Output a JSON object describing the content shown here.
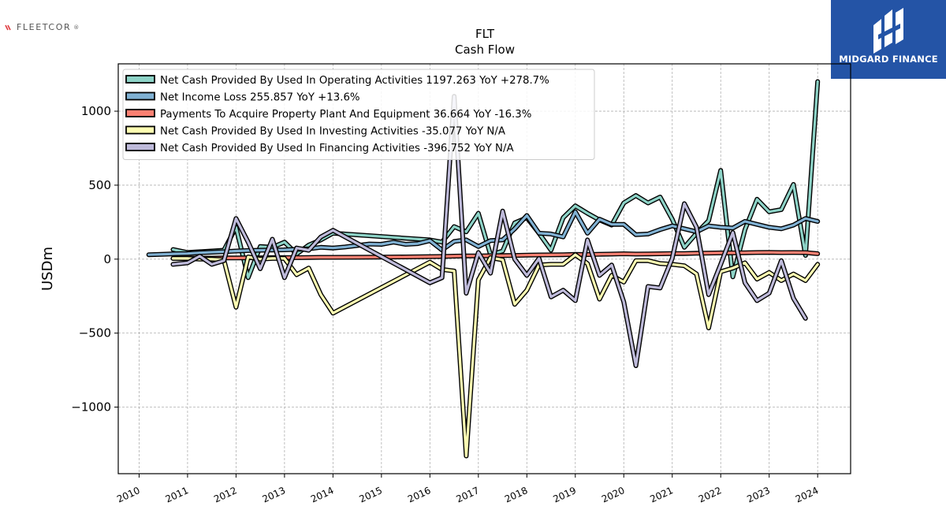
{
  "branding": {
    "left_logo_text": "FLEETCOR",
    "left_logo_mark": "®",
    "right_logo_text": "MIDGARD FINANCE",
    "right_logo_icon": "midgard-mark-icon",
    "right_logo_bg": "#2454a6"
  },
  "chart_data": {
    "type": "line",
    "title": "FLT",
    "subtitle": "Cash Flow",
    "xlabel": "",
    "ylabel": "USDm",
    "ylim": [
      -1450,
      1320
    ],
    "xlim": [
      2009.57,
      2024.68
    ],
    "yticks": [
      1000,
      500,
      0,
      -500,
      -1000
    ],
    "ytick_labels": [
      "1000",
      "500",
      "0",
      "−500",
      "−1000"
    ],
    "xticks": [
      2010,
      2011,
      2012,
      2013,
      2014,
      2015,
      2016,
      2017,
      2018,
      2019,
      2020,
      2021,
      2022,
      2023,
      2024
    ],
    "xtick_labels": [
      "2010",
      "2011",
      "2012",
      "2013",
      "2014",
      "2015",
      "2016",
      "2017",
      "2018",
      "2019",
      "2020",
      "2021",
      "2022",
      "2023",
      "2024"
    ],
    "grid": true,
    "legend_position": "top-left",
    "series": [
      {
        "name": "Net Cash Provided By Used In Operating Activities",
        "legend_label": "Net Cash Provided By Used In Operating Activities  1197.263 YoY +278.7%",
        "color": "#8dd3c7",
        "points": [
          [
            2010.7,
            65
          ],
          [
            2011.0,
            45
          ],
          [
            2011.25,
            50
          ],
          [
            2011.5,
            55
          ],
          [
            2011.75,
            60
          ],
          [
            2012.0,
            215
          ],
          [
            2012.25,
            -125
          ],
          [
            2012.5,
            85
          ],
          [
            2012.75,
            80
          ],
          [
            2013.0,
            115
          ],
          [
            2013.25,
            35
          ],
          [
            2013.5,
            95
          ],
          [
            2013.75,
            130
          ],
          [
            2014.0,
            175
          ],
          [
            2016.0,
            130
          ],
          [
            2016.25,
            115
          ],
          [
            2016.5,
            220
          ],
          [
            2016.75,
            185
          ],
          [
            2017.0,
            310
          ],
          [
            2017.25,
            30
          ],
          [
            2017.5,
            55
          ],
          [
            2017.75,
            245
          ],
          [
            2018.0,
            280
          ],
          [
            2018.25,
            175
          ],
          [
            2018.5,
            60
          ],
          [
            2018.75,
            280
          ],
          [
            2019.0,
            360
          ],
          [
            2019.25,
            310
          ],
          [
            2019.5,
            265
          ],
          [
            2019.75,
            230
          ],
          [
            2020.0,
            380
          ],
          [
            2020.25,
            430
          ],
          [
            2020.5,
            380
          ],
          [
            2020.75,
            420
          ],
          [
            2021.0,
            270
          ],
          [
            2021.25,
            80
          ],
          [
            2021.5,
            175
          ],
          [
            2021.75,
            260
          ],
          [
            2022.0,
            600
          ],
          [
            2022.25,
            -120
          ],
          [
            2022.5,
            200
          ],
          [
            2022.75,
            405
          ],
          [
            2023.0,
            320
          ],
          [
            2023.25,
            335
          ],
          [
            2023.5,
            505
          ],
          [
            2023.75,
            25
          ],
          [
            2024.0,
            1200
          ]
        ]
      },
      {
        "name": "Net Income Loss",
        "legend_label": "Net Income Loss  255.857 YoY +13.6%",
        "color": "#80b1d3",
        "points": [
          [
            2010.2,
            30
          ],
          [
            2010.5,
            33
          ],
          [
            2010.75,
            36
          ],
          [
            2011.0,
            38
          ],
          [
            2011.25,
            43
          ],
          [
            2011.5,
            47
          ],
          [
            2011.75,
            50
          ],
          [
            2012.0,
            55
          ],
          [
            2012.25,
            58
          ],
          [
            2012.5,
            60
          ],
          [
            2012.75,
            62
          ],
          [
            2013.0,
            63
          ],
          [
            2013.25,
            66
          ],
          [
            2013.5,
            70
          ],
          [
            2013.75,
            80
          ],
          [
            2014.0,
            75
          ],
          [
            2014.25,
            82
          ],
          [
            2014.5,
            92
          ],
          [
            2014.75,
            102
          ],
          [
            2015.0,
            100
          ],
          [
            2015.25,
            115
          ],
          [
            2015.5,
            100
          ],
          [
            2015.75,
            105
          ],
          [
            2016.0,
            125
          ],
          [
            2016.25,
            62
          ],
          [
            2016.5,
            120
          ],
          [
            2016.75,
            130
          ],
          [
            2017.0,
            85
          ],
          [
            2017.25,
            125
          ],
          [
            2017.5,
            130
          ],
          [
            2017.75,
            205
          ],
          [
            2018.0,
            295
          ],
          [
            2018.25,
            175
          ],
          [
            2018.5,
            170
          ],
          [
            2018.75,
            150
          ],
          [
            2019.0,
            320
          ],
          [
            2019.25,
            175
          ],
          [
            2019.5,
            270
          ],
          [
            2019.75,
            235
          ],
          [
            2020.0,
            235
          ],
          [
            2020.25,
            165
          ],
          [
            2020.5,
            170
          ],
          [
            2020.75,
            200
          ],
          [
            2021.0,
            225
          ],
          [
            2021.25,
            205
          ],
          [
            2021.5,
            185
          ],
          [
            2021.75,
            225
          ],
          [
            2022.0,
            215
          ],
          [
            2022.25,
            210
          ],
          [
            2022.5,
            255
          ],
          [
            2022.75,
            235
          ],
          [
            2023.0,
            215
          ],
          [
            2023.25,
            205
          ],
          [
            2023.5,
            230
          ],
          [
            2023.75,
            275
          ],
          [
            2024.0,
            255
          ]
        ]
      },
      {
        "name": "Payments To Acquire Property Plant And Equipment",
        "legend_label": "Payments To Acquire Property Plant And Equipment  36.664 YoY -16.3%",
        "color": "#fb8072",
        "points": [
          [
            2010.7,
            5
          ],
          [
            2011.0,
            6
          ],
          [
            2011.25,
            7
          ],
          [
            2011.5,
            7
          ],
          [
            2011.75,
            8
          ],
          [
            2012.0,
            8
          ],
          [
            2012.25,
            9
          ],
          [
            2012.5,
            9
          ],
          [
            2012.75,
            10
          ],
          [
            2013.0,
            10
          ],
          [
            2013.25,
            10
          ],
          [
            2013.5,
            11
          ],
          [
            2013.75,
            12
          ],
          [
            2014.0,
            12
          ],
          [
            2014.5,
            13
          ],
          [
            2015.0,
            14
          ],
          [
            2015.5,
            15
          ],
          [
            2016.0,
            17
          ],
          [
            2016.25,
            18
          ],
          [
            2016.5,
            20
          ],
          [
            2016.75,
            22
          ],
          [
            2017.0,
            22
          ],
          [
            2017.25,
            23
          ],
          [
            2017.5,
            24
          ],
          [
            2017.75,
            25
          ],
          [
            2018.0,
            27
          ],
          [
            2018.25,
            28
          ],
          [
            2018.5,
            29
          ],
          [
            2018.75,
            30
          ],
          [
            2019.0,
            32
          ],
          [
            2019.25,
            31
          ],
          [
            2019.5,
            33
          ],
          [
            2019.75,
            34
          ],
          [
            2020.0,
            36
          ],
          [
            2020.25,
            34
          ],
          [
            2020.5,
            35
          ],
          [
            2020.75,
            36
          ],
          [
            2021.0,
            38
          ],
          [
            2021.25,
            38
          ],
          [
            2021.5,
            40
          ],
          [
            2021.75,
            41
          ],
          [
            2022.0,
            42
          ],
          [
            2022.25,
            42
          ],
          [
            2022.5,
            43
          ],
          [
            2022.75,
            45
          ],
          [
            2023.0,
            46
          ],
          [
            2023.25,
            44
          ],
          [
            2023.5,
            45
          ],
          [
            2023.75,
            44
          ],
          [
            2024.0,
            37
          ]
        ]
      },
      {
        "name": "Net Cash Provided By Used In Investing Activities",
        "legend_label": "Net Cash Provided By Used In Investing Activities  -35.077 YoY N/A",
        "color": "#ffffb3",
        "points": [
          [
            2010.7,
            5
          ],
          [
            2011.0,
            5
          ],
          [
            2011.25,
            0
          ],
          [
            2011.5,
            0
          ],
          [
            2011.75,
            -5
          ],
          [
            2012.0,
            -325
          ],
          [
            2012.25,
            15
          ],
          [
            2012.5,
            0
          ],
          [
            2012.75,
            5
          ],
          [
            2013.0,
            5
          ],
          [
            2013.25,
            -105
          ],
          [
            2013.5,
            -60
          ],
          [
            2013.75,
            -240
          ],
          [
            2014.0,
            -365
          ],
          [
            2016.0,
            -20
          ],
          [
            2016.25,
            -70
          ],
          [
            2016.5,
            -80
          ],
          [
            2016.75,
            -1330
          ],
          [
            2017.0,
            -140
          ],
          [
            2017.25,
            10
          ],
          [
            2017.5,
            -5
          ],
          [
            2017.75,
            -305
          ],
          [
            2018.0,
            -210
          ],
          [
            2018.25,
            -40
          ],
          [
            2018.5,
            -35
          ],
          [
            2018.75,
            -35
          ],
          [
            2019.0,
            30
          ],
          [
            2019.25,
            -30
          ],
          [
            2019.5,
            -270
          ],
          [
            2019.75,
            -110
          ],
          [
            2020.0,
            -155
          ],
          [
            2020.25,
            -10
          ],
          [
            2020.5,
            -10
          ],
          [
            2020.75,
            -30
          ],
          [
            2021.0,
            -35
          ],
          [
            2021.25,
            -45
          ],
          [
            2021.5,
            -100
          ],
          [
            2021.75,
            -465
          ],
          [
            2022.0,
            -85
          ],
          [
            2022.25,
            -60
          ],
          [
            2022.5,
            -25
          ],
          [
            2022.75,
            -135
          ],
          [
            2023.0,
            -90
          ],
          [
            2023.25,
            -145
          ],
          [
            2023.5,
            -100
          ],
          [
            2023.75,
            -145
          ],
          [
            2024.0,
            -35
          ]
        ]
      },
      {
        "name": "Net Cash Provided By Used In Financing Activities",
        "legend_label": "Net Cash Provided By Used In Financing Activities  -396.752 YoY N/A",
        "color": "#bebada",
        "points": [
          [
            2010.7,
            -35
          ],
          [
            2011.0,
            -25
          ],
          [
            2011.25,
            20
          ],
          [
            2011.5,
            -35
          ],
          [
            2011.75,
            -10
          ],
          [
            2012.0,
            275
          ],
          [
            2012.25,
            115
          ],
          [
            2012.5,
            -65
          ],
          [
            2012.75,
            135
          ],
          [
            2013.0,
            -125
          ],
          [
            2013.25,
            75
          ],
          [
            2013.5,
            60
          ],
          [
            2013.75,
            150
          ],
          [
            2014.0,
            195
          ],
          [
            2016.0,
            -160
          ],
          [
            2016.25,
            -125
          ],
          [
            2016.5,
            1100
          ],
          [
            2016.75,
            -230
          ],
          [
            2017.0,
            45
          ],
          [
            2017.25,
            -95
          ],
          [
            2017.5,
            325
          ],
          [
            2017.75,
            0
          ],
          [
            2018.0,
            -110
          ],
          [
            2018.25,
            5
          ],
          [
            2018.5,
            -255
          ],
          [
            2018.75,
            -210
          ],
          [
            2019.0,
            -280
          ],
          [
            2019.25,
            130
          ],
          [
            2019.5,
            -110
          ],
          [
            2019.75,
            -40
          ],
          [
            2020.0,
            -290
          ],
          [
            2020.25,
            -720
          ],
          [
            2020.5,
            -185
          ],
          [
            2020.75,
            -195
          ],
          [
            2021.0,
            5
          ],
          [
            2021.25,
            375
          ],
          [
            2021.5,
            215
          ],
          [
            2021.75,
            -240
          ],
          [
            2022.0,
            -35
          ],
          [
            2022.25,
            180
          ],
          [
            2022.5,
            -160
          ],
          [
            2022.75,
            -280
          ],
          [
            2023.0,
            -230
          ],
          [
            2023.25,
            -10
          ],
          [
            2023.5,
            -265
          ],
          [
            2023.75,
            -400
          ]
        ]
      }
    ]
  }
}
